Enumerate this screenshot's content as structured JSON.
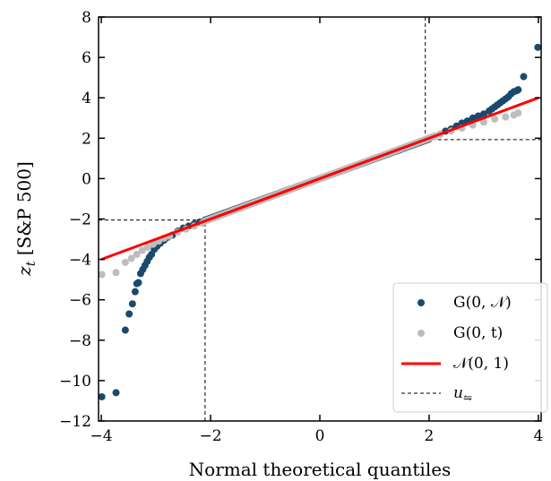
{
  "chart_data": {
    "type": "scatter",
    "xlabel": "Normal theoretical quantiles",
    "ylabel_main": "z",
    "ylabel_sub": "t",
    "ylabel_rest": " [S&P 500]",
    "xlim": [
      -4.05,
      4.05
    ],
    "ylim": [
      -12,
      8
    ],
    "x_ticks": [
      -4,
      -2,
      0,
      2,
      4
    ],
    "y_ticks": [
      -12,
      -10,
      -8,
      -6,
      -4,
      -2,
      0,
      2,
      4,
      6,
      8
    ],
    "x_tick_labels": [
      "−4",
      "−2",
      "0",
      "2",
      "4"
    ],
    "y_tick_labels": [
      "−12",
      "−10",
      "−8",
      "−6",
      "−4",
      "−2",
      "0",
      "2",
      "4",
      "6",
      "8"
    ],
    "grid": false,
    "legend_position": "lower-right",
    "legend": {
      "g0n": "G(0, 𝒩)",
      "g0t": "G(0, t)",
      "normal": "𝒩(0, 1)",
      "threshold_main": "u",
      "threshold_sub": "⇋"
    },
    "colors": {
      "g0n": "#1a4a6b",
      "g0t": "#bdbdbd",
      "normal": "#ff0000",
      "threshold": "#000000"
    },
    "series": [
      {
        "key": "g0n",
        "name": "G(0, 𝒩)",
        "marker": "circle",
        "tail_points": {
          "x": [
            -3.99,
            -3.73,
            -3.56,
            -3.49,
            -3.43,
            -3.38,
            -3.35,
            -3.32,
            -3.28,
            -3.24,
            -3.2,
            -3.16,
            -3.12,
            -3.08,
            -3.03,
            -2.98,
            -2.92,
            -2.85,
            -2.78,
            -2.7,
            -2.6,
            -2.5,
            -2.4,
            -2.3,
            -2.2,
            -2.1,
            2.0,
            2.1,
            2.2,
            2.3,
            2.4,
            2.5,
            2.6,
            2.7,
            2.8,
            2.9,
            3.0,
            3.1,
            3.15,
            3.2,
            3.25,
            3.3,
            3.35,
            3.4,
            3.45,
            3.5,
            3.55,
            3.6,
            3.63,
            3.73,
            3.99
          ],
          "y": [
            -10.8,
            -10.6,
            -7.5,
            -6.7,
            -6.2,
            -5.6,
            -5.2,
            -5.15,
            -4.7,
            -4.5,
            -4.3,
            -4.1,
            -3.9,
            -3.75,
            -3.5,
            -3.35,
            -3.2,
            -3.05,
            -2.9,
            -2.8,
            -2.6,
            -2.45,
            -2.35,
            -2.25,
            -2.15,
            -2.05,
            2.0,
            2.1,
            2.2,
            2.35,
            2.45,
            2.6,
            2.75,
            2.85,
            3.0,
            3.1,
            3.2,
            3.35,
            3.45,
            3.55,
            3.65,
            3.75,
            3.85,
            3.95,
            4.05,
            4.2,
            4.3,
            4.35,
            4.4,
            5.05,
            6.5
          ]
        },
        "body_x_range": [
          -2.1,
          2.0
        ],
        "body_slope": 0.98
      },
      {
        "key": "g0t",
        "name": "G(0, t)",
        "marker": "circle",
        "tail_points": {
          "x": [
            -3.99,
            -3.73,
            -3.56,
            -3.45,
            -3.35,
            -3.25,
            -3.15,
            -3.05,
            -2.95,
            -2.85,
            -2.75,
            -2.6,
            -2.45,
            -2.3,
            -2.15,
            2.2,
            2.4,
            2.6,
            2.8,
            3.0,
            3.2,
            3.4,
            3.55,
            3.63
          ],
          "y": [
            -4.75,
            -4.65,
            -4.15,
            -3.95,
            -3.75,
            -3.55,
            -3.4,
            -3.25,
            -3.1,
            -2.95,
            -2.85,
            -2.65,
            -2.5,
            -2.35,
            -2.2,
            2.2,
            2.35,
            2.5,
            2.65,
            2.8,
            2.95,
            3.05,
            3.15,
            3.25
          ]
        },
        "body_x_range": [
          -2.1,
          2.1
        ],
        "body_slope": 1.0
      }
    ],
    "reference_line": {
      "name": "𝒩(0, 1)",
      "x": [
        -4,
        4
      ],
      "y": [
        -4,
        4
      ]
    },
    "thresholds": {
      "name": "u⇋",
      "lower": {
        "x": -2.1,
        "y": -2.05
      },
      "upper": {
        "x": 1.93,
        "y": 1.93
      }
    }
  }
}
